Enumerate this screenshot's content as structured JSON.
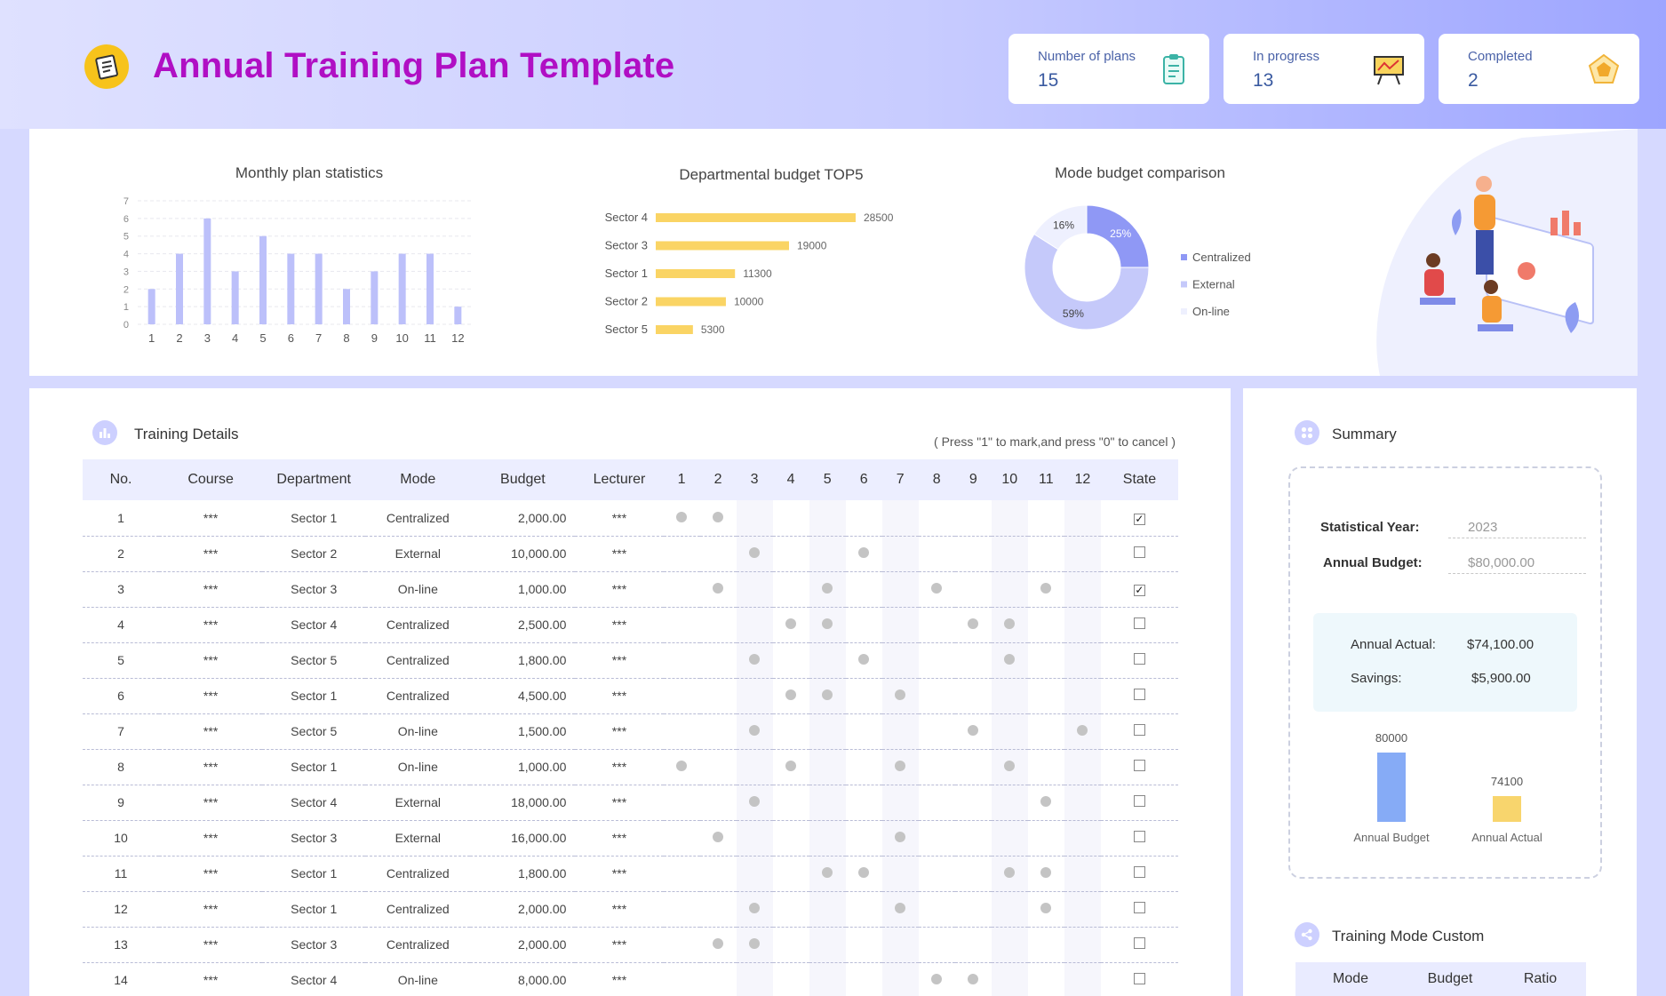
{
  "header": {
    "title": "Annual Training Plan Template",
    "kpis": [
      {
        "label": "Number of plans",
        "value": "15",
        "icon": "clipboard-icon"
      },
      {
        "label": "In progress",
        "value": "13",
        "icon": "chart-board-icon"
      },
      {
        "label": "Completed",
        "value": "2",
        "icon": "pentagon-badge-icon"
      }
    ]
  },
  "chart_data": [
    {
      "type": "bar",
      "title": "Monthly plan statistics",
      "categories": [
        "1",
        "2",
        "3",
        "4",
        "5",
        "6",
        "7",
        "8",
        "9",
        "10",
        "11",
        "12"
      ],
      "values": [
        2,
        4,
        6,
        3,
        5,
        4,
        4,
        2,
        3,
        4,
        4,
        1
      ],
      "ylim": [
        0,
        7
      ],
      "yticks": [
        "0",
        "1",
        "2",
        "3",
        "4",
        "5",
        "6",
        "7"
      ],
      "color": "#bcc0fa"
    },
    {
      "type": "bar",
      "orientation": "horizontal",
      "title": "Departmental budget TOP5",
      "categories": [
        "Sector 4",
        "Sector 3",
        "Sector 1",
        "Sector 2",
        "Sector 5"
      ],
      "values": [
        28500,
        19000,
        11300,
        10000,
        5300
      ],
      "labels": [
        "28500",
        "19000",
        "11300",
        "10000",
        "5300"
      ],
      "color": "#fad464"
    },
    {
      "type": "pie",
      "title": "Mode budget comparison",
      "categories": [
        "Centralized",
        "External",
        "On-line"
      ],
      "values": [
        25,
        59,
        16
      ],
      "labels": [
        "25%",
        "59%",
        "16%"
      ],
      "colors": [
        "#8f98f5",
        "#c5c9fa",
        "#eef0fe"
      ]
    },
    {
      "type": "bar",
      "categories": [
        "Annual Budget",
        "Annual Actual"
      ],
      "values": [
        80000,
        74100
      ],
      "labels": [
        "80000",
        "74100"
      ],
      "colors": [
        "#86abf6",
        "#f8d56d"
      ]
    }
  ],
  "details": {
    "title": "Training Details",
    "hint": "( Press \"1\" to mark,and press \"0\" to cancel )",
    "columns": [
      "No.",
      "Course",
      "Department",
      "Mode",
      "Budget",
      "Lecturer",
      "1",
      "2",
      "3",
      "4",
      "5",
      "6",
      "7",
      "8",
      "9",
      "10",
      "11",
      "12",
      "State"
    ],
    "rows": [
      {
        "no": "1",
        "course": "***",
        "dept": "Sector 1",
        "mode": "Centralized",
        "budget": "2,000.00",
        "lecturer": "***",
        "months": [
          1,
          2
        ],
        "done": true
      },
      {
        "no": "2",
        "course": "***",
        "dept": "Sector 2",
        "mode": "External",
        "budget": "10,000.00",
        "lecturer": "***",
        "months": [
          3,
          6
        ],
        "done": false
      },
      {
        "no": "3",
        "course": "***",
        "dept": "Sector 3",
        "mode": "On-line",
        "budget": "1,000.00",
        "lecturer": "***",
        "months": [
          2,
          5,
          8,
          11
        ],
        "done": true
      },
      {
        "no": "4",
        "course": "***",
        "dept": "Sector 4",
        "mode": "Centralized",
        "budget": "2,500.00",
        "lecturer": "***",
        "months": [
          4,
          5,
          9,
          10
        ],
        "done": false
      },
      {
        "no": "5",
        "course": "***",
        "dept": "Sector 5",
        "mode": "Centralized",
        "budget": "1,800.00",
        "lecturer": "***",
        "months": [
          3,
          6,
          10
        ],
        "done": false
      },
      {
        "no": "6",
        "course": "***",
        "dept": "Sector 1",
        "mode": "Centralized",
        "budget": "4,500.00",
        "lecturer": "***",
        "months": [
          4,
          5,
          7
        ],
        "done": false
      },
      {
        "no": "7",
        "course": "***",
        "dept": "Sector 5",
        "mode": "On-line",
        "budget": "1,500.00",
        "lecturer": "***",
        "months": [
          3,
          9,
          12
        ],
        "done": false
      },
      {
        "no": "8",
        "course": "***",
        "dept": "Sector 1",
        "mode": "On-line",
        "budget": "1,000.00",
        "lecturer": "***",
        "months": [
          1,
          4,
          7,
          10
        ],
        "done": false
      },
      {
        "no": "9",
        "course": "***",
        "dept": "Sector 4",
        "mode": "External",
        "budget": "18,000.00",
        "lecturer": "***",
        "months": [
          3,
          11
        ],
        "done": false
      },
      {
        "no": "10",
        "course": "***",
        "dept": "Sector 3",
        "mode": "External",
        "budget": "16,000.00",
        "lecturer": "***",
        "months": [
          2,
          7
        ],
        "done": false
      },
      {
        "no": "11",
        "course": "***",
        "dept": "Sector 1",
        "mode": "Centralized",
        "budget": "1,800.00",
        "lecturer": "***",
        "months": [
          5,
          6,
          10,
          11
        ],
        "done": false
      },
      {
        "no": "12",
        "course": "***",
        "dept": "Sector 1",
        "mode": "Centralized",
        "budget": "2,000.00",
        "lecturer": "***",
        "months": [
          3,
          7,
          11
        ],
        "done": false
      },
      {
        "no": "13",
        "course": "***",
        "dept": "Sector 3",
        "mode": "Centralized",
        "budget": "2,000.00",
        "lecturer": "***",
        "months": [
          2,
          3
        ],
        "done": false
      },
      {
        "no": "14",
        "course": "***",
        "dept": "Sector 4",
        "mode": "On-line",
        "budget": "8,000.00",
        "lecturer": "***",
        "months": [
          8,
          9
        ],
        "done": false
      }
    ]
  },
  "summary": {
    "title": "Summary",
    "year_label": "Statistical Year:",
    "year_value": "2023",
    "budget_label": "Annual Budget:",
    "budget_value": "$80,000.00",
    "actual_label": "Annual Actual:",
    "actual_value": "$74,100.00",
    "savings_label": "Savings:",
    "savings_value": "$5,900.00"
  },
  "mode_custom": {
    "title": "Training Mode Custom",
    "columns": [
      "Mode",
      "Budget",
      "Ratio"
    ]
  }
}
